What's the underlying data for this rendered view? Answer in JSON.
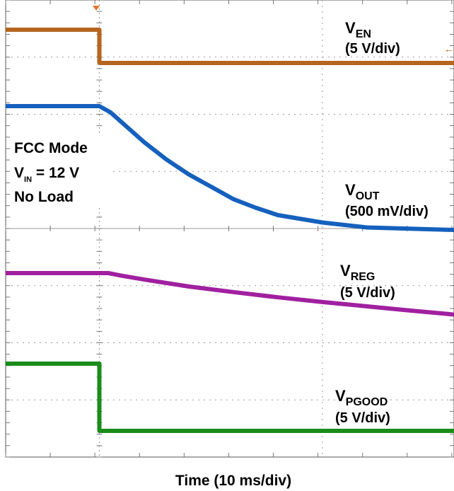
{
  "chart_data": {
    "type": "line",
    "x_unit": "ms",
    "x_scale_label": "Time (10 ms/div)",
    "x_range": [
      -4.2,
      15.9
    ],
    "x_per_div": 10,
    "grid": true,
    "annotations": [
      {
        "lines": [
          "FCC Mode",
          "V_IN = 12 V",
          "No Load"
        ]
      }
    ],
    "series": [
      {
        "name": "V_EN",
        "scale": "(5 V/div)",
        "color": "#b5651d",
        "x": [
          -4.2,
          0.0,
          0.0,
          15.9
        ],
        "y": [
          1,
          1,
          0,
          0
        ]
      },
      {
        "name": "V_OUT",
        "scale": "(500 mV/div)",
        "color": "#1560bd",
        "x": [
          -4.2,
          0.0,
          0.5,
          1.0,
          2.0,
          3.0,
          4.0,
          5.0,
          6.0,
          7.0,
          8.0,
          10.0,
          12.0,
          15.9
        ],
        "y": [
          1,
          1,
          0.95,
          0.87,
          0.71,
          0.57,
          0.45,
          0.35,
          0.25,
          0.18,
          0.12,
          0.06,
          0.02,
          0.0
        ]
      },
      {
        "name": "V_REG",
        "scale": "(5 V/div)",
        "color": "#a020a0",
        "x": [
          -4.2,
          0.4,
          1.0,
          2.0,
          4.0,
          6.0,
          8.0,
          10.0,
          12.0,
          14.0,
          15.9
        ],
        "y": [
          1,
          1,
          0.94,
          0.85,
          0.69,
          0.56,
          0.44,
          0.33,
          0.23,
          0.13,
          0.04
        ]
      },
      {
        "name": "V_PGOOD",
        "scale": "(5 V/div)",
        "color": "#1a8c1a",
        "x": [
          -4.2,
          0.0,
          0.0,
          15.9
        ],
        "y": [
          1,
          1,
          0,
          0
        ]
      }
    ]
  },
  "labels": {
    "ven_main": "V",
    "ven_sub": "EN",
    "ven_scale": "(5 V/div)",
    "vout_main": "V",
    "vout_sub": "OUT",
    "vout_scale": "(500 mV/div)",
    "vreg_main": "V",
    "vreg_sub": "REG",
    "vreg_scale": "(5 V/div)",
    "vpg_main": "V",
    "vpg_sub": "PGOOD",
    "vpg_scale": "(5 V/div)",
    "note_line1": "FCC Mode",
    "note_v": "V",
    "note_sub": "IN",
    "note_eq": " = 12 V",
    "note_line3": "No Load",
    "xlabel": "Time (10 ms/div)"
  }
}
